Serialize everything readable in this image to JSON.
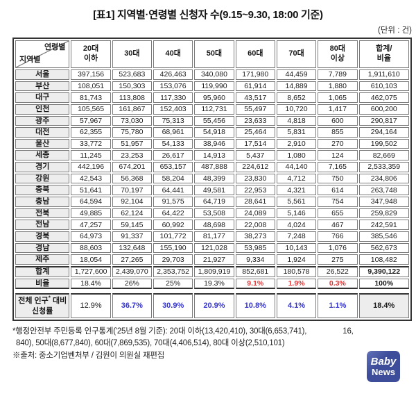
{
  "title": "[표1] 지역별·연령별 신청자 수(9.15~9.30, 18:00 기준)",
  "unit_label": "(단위 : 건)",
  "colors": {
    "accent_red": "#dd3434",
    "accent_blue": "#3434cf",
    "label_bg": "#ededed",
    "grid_border": "#7a7a7a",
    "outer_border": "#333333",
    "logo_bg": "#3d4d99"
  },
  "table": {
    "corner": {
      "top_right": "연령별",
      "bottom_left": "지역별"
    },
    "columns": [
      "20대\n이하",
      "30대",
      "40대",
      "50대",
      "60대",
      "70대",
      "80대\n이상",
      "합계/\n비율"
    ],
    "rows": [
      {
        "label": "서울",
        "values": [
          "397,156",
          "523,683",
          "426,463",
          "340,080",
          "171,980",
          "44,459",
          "7,789",
          "1,911,610"
        ]
      },
      {
        "label": "부산",
        "values": [
          "108,051",
          "150,303",
          "153,076",
          "119,990",
          "61,914",
          "14,889",
          "1,880",
          "610,103"
        ]
      },
      {
        "label": "대구",
        "values": [
          "81,743",
          "113,808",
          "117,330",
          "95,960",
          "43,517",
          "8,652",
          "1,065",
          "462,075"
        ]
      },
      {
        "label": "인천",
        "values": [
          "105,565",
          "161,867",
          "152,403",
          "112,731",
          "55,497",
          "10,720",
          "1,417",
          "600,200"
        ]
      },
      {
        "label": "광주",
        "values": [
          "57,967",
          "73,030",
          "75,313",
          "55,456",
          "23,633",
          "4,818",
          "600",
          "290,817"
        ]
      },
      {
        "label": "대전",
        "values": [
          "62,355",
          "75,780",
          "68,961",
          "54,918",
          "25,464",
          "5,831",
          "855",
          "294,164"
        ]
      },
      {
        "label": "울산",
        "values": [
          "33,772",
          "51,957",
          "54,133",
          "38,946",
          "17,514",
          "2,910",
          "270",
          "199,502"
        ]
      },
      {
        "label": "세종",
        "values": [
          "11,245",
          "23,253",
          "26,617",
          "14,913",
          "5,437",
          "1,080",
          "124",
          "82,669"
        ]
      },
      {
        "label": "경기",
        "values": [
          "442,196",
          "674,201",
          "653,157",
          "487,888",
          "224,612",
          "44,140",
          "7,165",
          "2,533,359"
        ]
      },
      {
        "label": "강원",
        "values": [
          "42,543",
          "56,368",
          "58,204",
          "48,399",
          "23,830",
          "4,712",
          "750",
          "234,806"
        ]
      },
      {
        "label": "충북",
        "values": [
          "51,641",
          "70,197",
          "64,441",
          "49,581",
          "22,953",
          "4,321",
          "614",
          "263,748"
        ]
      },
      {
        "label": "충남",
        "values": [
          "64,594",
          "92,104",
          "91,575",
          "64,719",
          "28,641",
          "5,561",
          "754",
          "347,948"
        ]
      },
      {
        "label": "전북",
        "values": [
          "49,885",
          "62,124",
          "64,422",
          "53,508",
          "24,089",
          "5,146",
          "655",
          "259,829"
        ]
      },
      {
        "label": "전남",
        "values": [
          "47,257",
          "59,145",
          "60,992",
          "48,698",
          "22,008",
          "4,024",
          "467",
          "242,591"
        ]
      },
      {
        "label": "경북",
        "values": [
          "64,973",
          "91,337",
          "101,772",
          "81,177",
          "38,273",
          "7,248",
          "766",
          "385,546"
        ]
      },
      {
        "label": "경남",
        "values": [
          "88,603",
          "132,648",
          "155,190",
          "121,028",
          "53,985",
          "10,143",
          "1,076",
          "562,673"
        ]
      },
      {
        "label": "제주",
        "values": [
          "18,054",
          "27,265",
          "29,703",
          "21,927",
          "9,334",
          "1,924",
          "275",
          "108,482"
        ]
      }
    ],
    "total_row": {
      "label": "합계",
      "values": [
        "1,727,600",
        "2,439,070",
        "2,353,752",
        "1,809,919",
        "852,681",
        "180,578",
        "26,522",
        "9,390,122"
      ],
      "bold_indices": [
        7
      ]
    },
    "ratio_row": {
      "label": "비율",
      "values": [
        "18.4%",
        "26%",
        "25%",
        "19.3%",
        "9.1%",
        "1.9%",
        "0.3%",
        "100%"
      ],
      "red_indices": [
        4,
        5,
        6
      ],
      "bold_indices": [
        7
      ]
    },
    "rate_row": {
      "label_line1": "전체 인구",
      "label_sup": "*",
      "label_line1_suffix": " 대비",
      "label_line2": "신청률",
      "values": [
        "12.9%",
        "36.7%",
        "30.9%",
        "20.9%",
        "10.8%",
        "4.1%",
        "1.1%",
        "18.4%"
      ],
      "blue_indices": [
        1,
        2,
        3,
        4,
        5,
        6
      ],
      "bold_indices": [
        7
      ],
      "gray_bg_indices": [
        7
      ]
    }
  },
  "footnote": {
    "line1_before_logo": "*행정안전부 주민등록 인구통계('25년 8월 기준): 20대 이하(13,420,410), 30대(6,653,741),",
    "line1_after_logo": "16,",
    "line2": "840), 50대(8,677,840), 60대(7,869,535), 70대(4,406,514), 80대 이상(2,510,101)",
    "line3": "※출처: 중소기업벤처부 / 김원이 의원실 재편집"
  },
  "logo": {
    "line1": "Baby",
    "line2": "News"
  }
}
